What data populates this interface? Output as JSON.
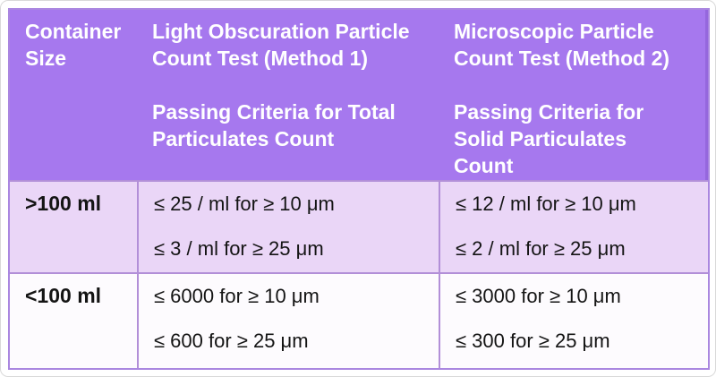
{
  "table": {
    "title_semantic": "Particulate matter passing criteria by container size",
    "header": {
      "container_size": "Container\nSize",
      "method1": "Light Obscuration Particle\nCount Test (Method 1)\n\nPassing Criteria for Total\nParticulates Count",
      "method2": "Microscopic Particle\nCount Test (Method 2)\n\nPassing Criteria for\nSolid Particulates\nCount"
    },
    "rows": [
      {
        "size": ">100 ml",
        "method1_criteria": "≤ 25 / ml for ≥ 10 μm\n\n≤ 3 / ml for ≥ 25 μm",
        "method2_criteria": "≤ 12 / ml for ≥ 10 μm\n\n≤ 2 / ml for ≥ 25 μm"
      },
      {
        "size": "<100 ml",
        "method1_criteria": "≤ 6000 for ≥ 10 μm\n\n≤ 600 for ≥ 25 μm",
        "method2_criteria": "≤ 3000 for ≥ 10 μm\n\n≤ 300 for ≥ 25 μm"
      }
    ],
    "colors": {
      "header_bg": "#a678ee",
      "row1_bg": "#ead6f7",
      "row2_bg": "#fdfbfe",
      "grid_border": "#b28fd8",
      "header_text": "#ffffff",
      "body_text": "#141414"
    }
  }
}
